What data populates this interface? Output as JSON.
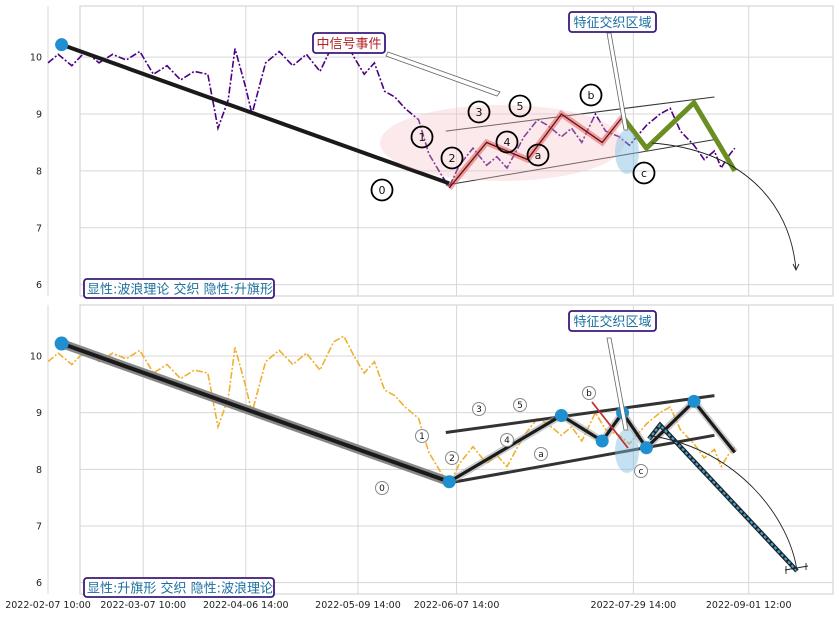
{
  "chart_data": [
    {
      "type": "line",
      "ylim": [
        5.8,
        10.9
      ],
      "yticks": [
        6,
        7,
        8,
        9,
        10
      ],
      "colors": {
        "price": "#4b0082",
        "trend": "#1a1a1a",
        "wave": "#e06060",
        "abc": "#6b8e23",
        "channel": "#333333",
        "start_marker": "#1f8fd0"
      },
      "annotations": [
        {
          "text": "中信号事件",
          "color": "#b22222"
        },
        {
          "text": "特征交织区域",
          "color": "#1a6fa0"
        }
      ],
      "caption": "显性:波浪理论 交织 隐性:升旗形",
      "wave_labels": [
        "0",
        "1",
        "2",
        "3",
        "4",
        "5",
        "a",
        "b",
        "c"
      ],
      "price_series": [
        [
          "2022-02-07",
          9.9
        ],
        [
          "2022-02-10",
          10.05
        ],
        [
          "2022-02-14",
          9.85
        ],
        [
          "2022-02-18",
          10.1
        ],
        [
          "2022-02-22",
          9.9
        ],
        [
          "2022-02-26",
          10.05
        ],
        [
          "2022-03-02",
          9.95
        ],
        [
          "2022-03-06",
          10.1
        ],
        [
          "2022-03-10",
          9.7
        ],
        [
          "2022-03-14",
          9.85
        ],
        [
          "2022-03-18",
          9.6
        ],
        [
          "2022-03-22",
          9.75
        ],
        [
          "2022-03-26",
          9.7
        ],
        [
          "2022-03-29",
          8.75
        ],
        [
          "2022-04-01",
          9.25
        ],
        [
          "2022-04-03",
          10.15
        ],
        [
          "2022-04-06",
          9.5
        ],
        [
          "2022-04-08",
          9.0
        ],
        [
          "2022-04-12",
          9.9
        ],
        [
          "2022-04-16",
          10.1
        ],
        [
          "2022-04-20",
          9.85
        ],
        [
          "2022-04-24",
          10.05
        ],
        [
          "2022-04-28",
          9.75
        ],
        [
          "2022-05-02",
          10.25
        ],
        [
          "2022-05-05",
          10.35
        ],
        [
          "2022-05-08",
          10.0
        ],
        [
          "2022-05-11",
          9.7
        ],
        [
          "2022-05-14",
          9.9
        ],
        [
          "2022-05-17",
          9.4
        ],
        [
          "2022-05-20",
          9.3
        ],
        [
          "2022-05-23",
          9.1
        ],
        [
          "2022-05-27",
          8.9
        ],
        [
          "2022-05-30",
          8.3
        ],
        [
          "2022-06-03",
          7.9
        ],
        [
          "2022-06-05",
          7.72
        ],
        [
          "2022-06-08",
          8.1
        ],
        [
          "2022-06-12",
          8.4
        ],
        [
          "2022-06-16",
          8.1
        ],
        [
          "2022-06-19",
          8.25
        ],
        [
          "2022-06-22",
          8.05
        ],
        [
          "2022-06-27",
          8.6
        ],
        [
          "2022-07-01",
          8.9
        ],
        [
          "2022-07-04",
          8.8
        ],
        [
          "2022-07-08",
          8.6
        ],
        [
          "2022-07-11",
          8.75
        ],
        [
          "2022-07-14",
          8.5
        ],
        [
          "2022-07-18",
          9.0
        ],
        [
          "2022-07-21",
          8.7
        ],
        [
          "2022-07-25",
          8.6
        ],
        [
          "2022-07-28",
          8.45
        ],
        [
          "2022-08-02",
          8.8
        ],
        [
          "2022-08-06",
          9.0
        ],
        [
          "2022-08-09",
          9.1
        ],
        [
          "2022-08-12",
          8.7
        ],
        [
          "2022-08-16",
          8.45
        ],
        [
          "2022-08-19",
          8.2
        ],
        [
          "2022-08-22",
          8.35
        ],
        [
          "2022-08-24",
          8.05
        ],
        [
          "2022-08-26",
          8.25
        ],
        [
          "2022-08-28",
          8.4
        ]
      ],
      "trend_line": [
        [
          "2022-02-11",
          10.22
        ],
        [
          "2022-06-05",
          7.78
        ]
      ],
      "wave_points": [
        {
          "label": "0",
          "x": "2022-06-05",
          "y": 7.7
        },
        {
          "label": "1",
          "x": "2022-06-16",
          "y": 8.5
        },
        {
          "label": "2",
          "x": "2022-06-28",
          "y": 8.2
        },
        {
          "label": "3",
          "x": "2022-07-08",
          "y": 9.0
        },
        {
          "label": "4",
          "x": "2022-07-20",
          "y": 8.5
        },
        {
          "label": "5",
          "x": "2022-07-26",
          "y": 8.95
        },
        {
          "label": "a",
          "x": "2022-08-02",
          "y": 8.4
        },
        {
          "label": "b",
          "x": "2022-08-16",
          "y": 9.2
        },
        {
          "label": "c",
          "x": "2022-08-28",
          "y": 8.0
        }
      ],
      "channel_upper": [
        [
          "2022-06-04",
          8.7
        ],
        [
          "2022-08-22",
          9.3
        ]
      ],
      "channel_lower": [
        [
          "2022-06-04",
          7.75
        ],
        [
          "2022-08-22",
          8.55
        ]
      ],
      "projection_curve": [
        [
          "2022-08-31",
          8.5
        ],
        [
          "2022-10-05",
          6.15
        ]
      ]
    },
    {
      "type": "line",
      "ylim": [
        5.8,
        10.9
      ],
      "yticks": [
        6,
        7,
        8,
        9,
        10
      ],
      "xticks": [
        "2022-02-07 10:00",
        "2022-03-07 10:00",
        "2022-04-06 14:00",
        "2022-05-09 14:00",
        "2022-06-07 14:00",
        "2022-07-29 14:00",
        "2022-09-01 12:00"
      ],
      "colors": {
        "price": "#f0b030",
        "trend": "#1a1a1a",
        "channel": "#333333",
        "node": "#1f8fd0",
        "pattern_line": "#1a1a1a",
        "projection": "#3aa0d8"
      },
      "annotations": [
        {
          "text": "特征交织区域",
          "color": "#1a6fa0"
        }
      ],
      "caption": "显性:升旗形 交织 隐性:波浪理论",
      "wave_labels": [
        "0",
        "1",
        "2",
        "3",
        "4",
        "5",
        "a",
        "b",
        "c"
      ],
      "price_series": [
        [
          "2022-02-07",
          9.9
        ],
        [
          "2022-02-10",
          10.05
        ],
        [
          "2022-02-14",
          9.85
        ],
        [
          "2022-02-18",
          10.1
        ],
        [
          "2022-02-22",
          9.9
        ],
        [
          "2022-02-26",
          10.05
        ],
        [
          "2022-03-02",
          9.95
        ],
        [
          "2022-03-06",
          10.1
        ],
        [
          "2022-03-10",
          9.7
        ],
        [
          "2022-03-14",
          9.85
        ],
        [
          "2022-03-18",
          9.6
        ],
        [
          "2022-03-22",
          9.75
        ],
        [
          "2022-03-26",
          9.7
        ],
        [
          "2022-03-29",
          8.75
        ],
        [
          "2022-04-01",
          9.25
        ],
        [
          "2022-04-03",
          10.15
        ],
        [
          "2022-04-06",
          9.5
        ],
        [
          "2022-04-08",
          9.0
        ],
        [
          "2022-04-12",
          9.9
        ],
        [
          "2022-04-16",
          10.1
        ],
        [
          "2022-04-20",
          9.85
        ],
        [
          "2022-04-24",
          10.05
        ],
        [
          "2022-04-28",
          9.75
        ],
        [
          "2022-05-02",
          10.25
        ],
        [
          "2022-05-05",
          10.35
        ],
        [
          "2022-05-08",
          10.0
        ],
        [
          "2022-05-11",
          9.7
        ],
        [
          "2022-05-14",
          9.9
        ],
        [
          "2022-05-17",
          9.4
        ],
        [
          "2022-05-20",
          9.3
        ],
        [
          "2022-05-23",
          9.1
        ],
        [
          "2022-05-27",
          8.9
        ],
        [
          "2022-05-30",
          8.3
        ],
        [
          "2022-06-03",
          7.9
        ],
        [
          "2022-06-05",
          7.72
        ],
        [
          "2022-06-08",
          8.1
        ],
        [
          "2022-06-12",
          8.4
        ],
        [
          "2022-06-16",
          8.1
        ],
        [
          "2022-06-19",
          8.25
        ],
        [
          "2022-06-22",
          8.05
        ],
        [
          "2022-06-27",
          8.6
        ],
        [
          "2022-07-01",
          8.9
        ],
        [
          "2022-07-04",
          8.8
        ],
        [
          "2022-07-08",
          8.6
        ],
        [
          "2022-07-11",
          8.75
        ],
        [
          "2022-07-14",
          8.5
        ],
        [
          "2022-07-18",
          9.0
        ],
        [
          "2022-07-21",
          8.7
        ],
        [
          "2022-07-25",
          8.6
        ],
        [
          "2022-07-28",
          8.45
        ],
        [
          "2022-08-02",
          8.8
        ],
        [
          "2022-08-06",
          9.0
        ],
        [
          "2022-08-09",
          9.1
        ],
        [
          "2022-08-12",
          8.7
        ],
        [
          "2022-08-16",
          8.45
        ],
        [
          "2022-08-19",
          8.2
        ],
        [
          "2022-08-22",
          8.35
        ],
        [
          "2022-08-24",
          8.05
        ],
        [
          "2022-08-26",
          8.25
        ],
        [
          "2022-08-28",
          8.4
        ]
      ],
      "trend_line": [
        [
          "2022-02-11",
          10.22
        ],
        [
          "2022-06-05",
          7.78
        ]
      ],
      "pattern_points": [
        {
          "x": "2022-06-05",
          "y": 7.78
        },
        {
          "x": "2022-07-08",
          "y": 8.95
        },
        {
          "x": "2022-07-20",
          "y": 8.5
        },
        {
          "x": "2022-07-26",
          "y": 9.0
        },
        {
          "x": "2022-08-02",
          "y": 8.38
        },
        {
          "x": "2022-08-16",
          "y": 9.2
        },
        {
          "x": "2022-08-28",
          "y": 8.3
        }
      ],
      "wave_points": [
        {
          "label": "0",
          "x": "2022-06-05",
          "y": 7.62
        },
        {
          "label": "1",
          "x": "2022-06-16",
          "y": 8.55
        },
        {
          "label": "2",
          "x": "2022-06-28",
          "y": 8.2
        },
        {
          "label": "3",
          "x": "2022-07-08",
          "y": 9.05
        },
        {
          "label": "4",
          "x": "2022-07-20",
          "y": 8.5
        },
        {
          "label": "5",
          "x": "2022-07-26",
          "y": 9.1
        },
        {
          "label": "a",
          "x": "2022-08-02",
          "y": 8.25
        },
        {
          "label": "b",
          "x": "2022-08-16",
          "y": 9.3
        },
        {
          "label": "c",
          "x": "2022-08-31",
          "y": 7.95
        }
      ],
      "channel_upper": [
        [
          "2022-06-04",
          8.65
        ],
        [
          "2022-08-22",
          9.3
        ]
      ],
      "channel_lower": [
        [
          "2022-06-04",
          7.75
        ],
        [
          "2022-08-22",
          8.6
        ]
      ],
      "projection_line": [
        [
          "2022-08-29",
          8.5
        ],
        [
          "2022-09-02",
          8.75
        ],
        [
          "2022-10-05",
          6.15
        ]
      ],
      "projection_curve": [
        [
          "2022-08-31",
          8.6
        ],
        [
          "2022-10-05",
          6.15
        ]
      ]
    }
  ]
}
